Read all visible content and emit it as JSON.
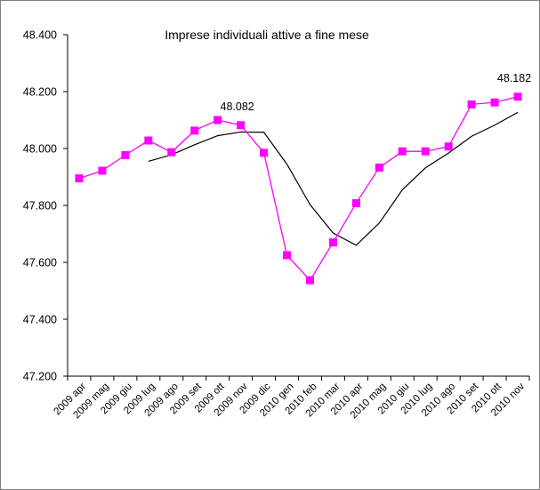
{
  "chart_data": {
    "type": "line",
    "title": "Imprese individuali attive a fine mese",
    "xlabel": "",
    "ylabel": "",
    "ylim": [
      47200,
      48400
    ],
    "y_ticks": [
      "47.200",
      "47.400",
      "47.600",
      "47.800",
      "48.000",
      "48.200",
      "48.400"
    ],
    "y_tick_values": [
      47200,
      47400,
      47600,
      47800,
      48000,
      48200,
      48400
    ],
    "categories": [
      "2009 apr",
      "2009 mag",
      "2009 giu",
      "2009 lug",
      "2009 ago",
      "2009 set",
      "2009 ott",
      "2009 nov",
      "2009 dic",
      "2010 gen",
      "2010 feb",
      "2010 mar",
      "2010 apr",
      "2010 mag",
      "2010 giu",
      "2010 lug",
      "2010 ago",
      "2010 set",
      "2010 ott",
      "2010 nov"
    ],
    "series": [
      {
        "color": "#ff00ff",
        "marker": "square",
        "values": [
          47895,
          47922,
          47977,
          48028,
          47987,
          48063,
          48100,
          48082,
          47985,
          47625,
          47537,
          47670,
          47808,
          47933,
          47990,
          47990,
          48007,
          48155,
          48162,
          48182
        ]
      },
      {
        "color": "#000000",
        "marker": "none",
        "values": [
          null,
          null,
          null,
          47955,
          47978,
          48013,
          48045,
          48058,
          48057,
          47945,
          47803,
          47703,
          47660,
          47738,
          47855,
          47932,
          47984,
          48043,
          48082,
          48127
        ]
      }
    ],
    "annotations": [
      {
        "text": "48.082",
        "category": "2009 nov",
        "series": 0
      },
      {
        "text": "48.182",
        "category": "2010 nov",
        "series": 0
      }
    ],
    "grid": false,
    "legend": "none"
  }
}
